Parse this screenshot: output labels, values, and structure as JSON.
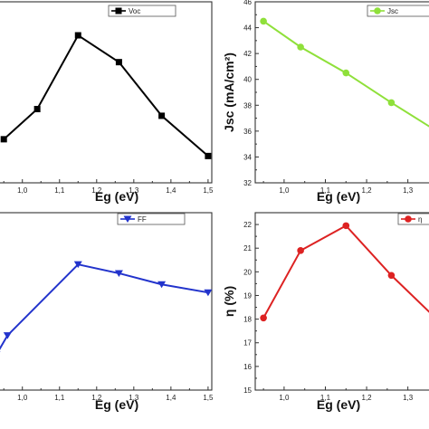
{
  "chart_data": [
    {
      "type": "line",
      "xlabel": "Eg (eV)",
      "ylabel": "",
      "xlim": [
        0.93,
        1.51
      ],
      "ylim": [
        0.28,
        0.82
      ],
      "xticks": [
        {
          "v": 1.0,
          "label": "1,0"
        },
        {
          "v": 1.1,
          "label": "1,1"
        },
        {
          "v": 1.2,
          "label": "1,2"
        },
        {
          "v": 1.3,
          "label": "1,3"
        },
        {
          "v": 1.4,
          "label": "1,4"
        },
        {
          "v": 1.5,
          "label": "1,5"
        }
      ],
      "yticks": [],
      "legend_position": "top-right",
      "series": [
        {
          "name": "Voc",
          "color": "#000000",
          "marker": "square",
          "x": [
            0.95,
            1.04,
            1.15,
            1.26,
            1.375,
            1.5
          ],
          "y": [
            0.41,
            0.5,
            0.72,
            0.64,
            0.48,
            0.36
          ]
        }
      ]
    },
    {
      "type": "line",
      "xlabel": "Eg (eV)",
      "ylabel": "Jsc (mA/cm²)",
      "xlim": [
        0.93,
        1.36
      ],
      "ylim": [
        32,
        46
      ],
      "xticks": [
        {
          "v": 1.0,
          "label": "1,0"
        },
        {
          "v": 1.1,
          "label": "1,1"
        },
        {
          "v": 1.2,
          "label": "1,2"
        },
        {
          "v": 1.3,
          "label": "1,3"
        }
      ],
      "yticks": [
        {
          "v": 32,
          "label": "32"
        },
        {
          "v": 34,
          "label": "34"
        },
        {
          "v": 36,
          "label": "36"
        },
        {
          "v": 38,
          "label": "38"
        },
        {
          "v": 40,
          "label": "40"
        },
        {
          "v": 42,
          "label": "42"
        },
        {
          "v": 44,
          "label": "44"
        },
        {
          "v": 46,
          "label": "46"
        }
      ],
      "legend_position": "top-right",
      "series": [
        {
          "name": "Jsc",
          "color": "#8fe03a",
          "marker": "circle",
          "x": [
            0.95,
            1.04,
            1.15,
            1.26,
            1.37
          ],
          "y": [
            44.5,
            42.5,
            40.5,
            38.2,
            36.0
          ]
        }
      ]
    },
    {
      "type": "line",
      "xlabel": "Eg (eV)",
      "ylabel": "",
      "xlim": [
        0.93,
        1.51
      ],
      "ylim": [
        0.62,
        0.86
      ],
      "xticks": [
        {
          "v": 1.0,
          "label": "1,0"
        },
        {
          "v": 1.1,
          "label": "1,1"
        },
        {
          "v": 1.2,
          "label": "1,2"
        },
        {
          "v": 1.3,
          "label": "1,3"
        },
        {
          "v": 1.4,
          "label": "1,4"
        },
        {
          "v": 1.5,
          "label": "1,5"
        }
      ],
      "yticks": [],
      "legend_position": "top-right",
      "series": [
        {
          "name": "FF",
          "color": "#2233cc",
          "marker": "triangle-down",
          "x": [
            0.93,
            0.96,
            1.15,
            1.26,
            1.375,
            1.5
          ],
          "y": [
            0.668,
            0.694,
            0.79,
            0.778,
            0.763,
            0.752
          ]
        }
      ]
    },
    {
      "type": "line",
      "xlabel": "Eg (eV)",
      "ylabel": "η (%)",
      "xlim": [
        0.93,
        1.36
      ],
      "ylim": [
        15,
        22.5
      ],
      "xticks": [
        {
          "v": 1.0,
          "label": "1,0"
        },
        {
          "v": 1.1,
          "label": "1,1"
        },
        {
          "v": 1.2,
          "label": "1,2"
        },
        {
          "v": 1.3,
          "label": "1,3"
        }
      ],
      "yticks": [
        {
          "v": 15,
          "label": "15"
        },
        {
          "v": 16,
          "label": "16"
        },
        {
          "v": 17,
          "label": "17"
        },
        {
          "v": 18,
          "label": "18"
        },
        {
          "v": 19,
          "label": "19"
        },
        {
          "v": 20,
          "label": "20"
        },
        {
          "v": 21,
          "label": "21"
        },
        {
          "v": 22,
          "label": "22"
        }
      ],
      "legend_position": "top-right",
      "series": [
        {
          "name": "η",
          "color": "#dd2222",
          "marker": "circle",
          "x": [
            0.95,
            1.04,
            1.15,
            1.26,
            1.37
          ],
          "y": [
            18.05,
            20.9,
            21.95,
            19.85,
            18.0
          ]
        }
      ]
    }
  ]
}
